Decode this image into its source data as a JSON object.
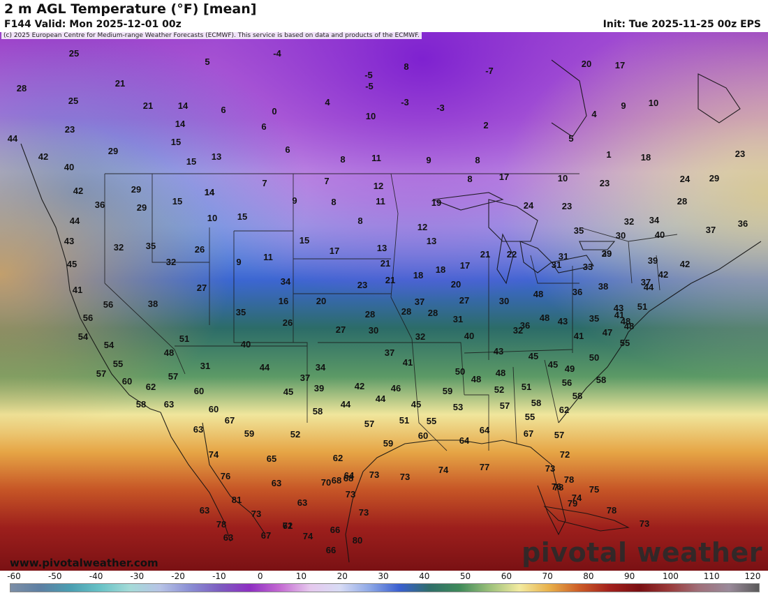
{
  "header": {
    "title": "2 m AGL Temperature (°F) [mean]",
    "valid": "F144 Valid: Mon 2025-12-01 00z",
    "init": "Init: Tue 2025-11-25 00z EPS",
    "copyright": "(c) 2025 European Centre for Medium-range Weather Forecasts (ECMWF). This service is based on data and products of the ECMWF."
  },
  "branding": {
    "logo_text": "pivotal weather",
    "site": "www.pivotalweather.com"
  },
  "colorbar": {
    "ticks": [
      "-60",
      "-50",
      "-40",
      "-30",
      "-20",
      "-10",
      "0",
      "10",
      "20",
      "30",
      "40",
      "50",
      "60",
      "70",
      "80",
      "90",
      "100",
      "110",
      "120"
    ],
    "colors": [
      "#7c8ea6",
      "#5d7fa3",
      "#4a9eb1",
      "#68c2c6",
      "#a5dbd8",
      "#b7c3e6",
      "#8a8ed4",
      "#7c5cc0",
      "#8e2fc2",
      "#c46ad2",
      "#e6c8ee",
      "#d8dcf5",
      "#8ea8e6",
      "#3a5fd0",
      "#2f6e6a",
      "#3f8a5a",
      "#9bc07a",
      "#f3eba0",
      "#e8b04a",
      "#cc5c27",
      "#a3211d",
      "#7a0f12",
      "#9a3a3a",
      "#a0707a",
      "#9a8a9a",
      "#5a5a5a"
    ]
  },
  "map_values": [
    {
      "v": "25",
      "c": "fg"
    },
    {
      "v": "28",
      "c": "fg"
    },
    {
      "v": "25",
      "c": "fg"
    },
    {
      "v": "23",
      "c": "fg"
    },
    {
      "v": "44",
      "c": "fg"
    },
    {
      "v": "42",
      "c": "fg"
    },
    {
      "v": "40",
      "c": "fg"
    },
    {
      "v": "21",
      "c": "fg"
    },
    {
      "v": "21",
      "c": "fg"
    },
    {
      "v": "14",
      "c": "fg"
    },
    {
      "v": "14",
      "c": "fg"
    },
    {
      "v": "15",
      "c": "fg"
    },
    {
      "v": "15",
      "c": "fg"
    },
    {
      "v": "29",
      "c": "fg"
    },
    {
      "v": "5",
      "c": "fg"
    },
    {
      "v": "6",
      "c": "fg"
    },
    {
      "v": "0",
      "c": "fg"
    },
    {
      "v": "6",
      "c": "fg"
    },
    {
      "v": "6",
      "c": "fg"
    },
    {
      "v": "13",
      "c": "fg"
    },
    {
      "v": "-4",
      "c": "fg"
    },
    {
      "v": "-5",
      "c": "fg"
    },
    {
      "v": "-5",
      "c": "fg"
    },
    {
      "v": "8",
      "c": "fg"
    },
    {
      "v": "-7",
      "c": "fg"
    },
    {
      "v": "4",
      "c": "fg"
    },
    {
      "v": "-3",
      "c": "fg"
    },
    {
      "v": "-3",
      "c": "fg"
    },
    {
      "v": "10",
      "c": "fg"
    },
    {
      "v": "2",
      "c": "fg"
    },
    {
      "v": "8",
      "c": "fg"
    },
    {
      "v": "11",
      "c": "fg"
    },
    {
      "v": "9",
      "c": "fg"
    },
    {
      "v": "8",
      "c": "fg"
    },
    {
      "v": "20",
      "c": "fg"
    },
    {
      "v": "17",
      "c": "fg"
    },
    {
      "v": "9",
      "c": "fg"
    },
    {
      "v": "10",
      "c": "fg"
    },
    {
      "v": "4",
      "c": "fg"
    },
    {
      "v": "5",
      "c": "fg"
    },
    {
      "v": "1",
      "c": "fg"
    },
    {
      "v": "18",
      "c": "fg"
    },
    {
      "v": "23",
      "c": "fg"
    },
    {
      "v": "42",
      "c": "fg"
    },
    {
      "v": "36",
      "c": "fg"
    },
    {
      "v": "29",
      "c": "fg"
    },
    {
      "v": "29",
      "c": "fg"
    },
    {
      "v": "15",
      "c": "fg"
    },
    {
      "v": "14",
      "c": "fg"
    },
    {
      "v": "10",
      "c": "fg"
    },
    {
      "v": "15",
      "c": "fg"
    },
    {
      "v": "7",
      "c": "fg"
    },
    {
      "v": "9",
      "c": "fg"
    },
    {
      "v": "7",
      "c": "fg"
    },
    {
      "v": "8",
      "c": "fg"
    },
    {
      "v": "12",
      "c": "fg"
    },
    {
      "v": "11",
      "c": "fg"
    },
    {
      "v": "8",
      "c": "fg"
    },
    {
      "v": "8",
      "c": "fg"
    },
    {
      "v": "17",
      "c": "fg"
    },
    {
      "v": "10",
      "c": "fg"
    },
    {
      "v": "23",
      "c": "fg"
    },
    {
      "v": "24",
      "c": "fg"
    },
    {
      "v": "29",
      "c": "fg"
    },
    {
      "v": "28",
      "c": "fg"
    },
    {
      "v": "44",
      "c": "fg"
    },
    {
      "v": "43",
      "c": "fg"
    },
    {
      "v": "45",
      "c": "fg"
    },
    {
      "v": "32",
      "c": "fg"
    },
    {
      "v": "35",
      "c": "fg"
    },
    {
      "v": "32",
      "c": "fg"
    },
    {
      "v": "26",
      "c": "fg"
    },
    {
      "v": "14",
      "c": "fg"
    },
    {
      "v": "15",
      "c": "fg"
    },
    {
      "v": "9",
      "c": "fg"
    },
    {
      "v": "11",
      "c": "fg"
    },
    {
      "v": "17",
      "c": "fg"
    },
    {
      "v": "13",
      "c": "fg"
    },
    {
      "v": "19",
      "c": "fg"
    },
    {
      "v": "12",
      "c": "fg"
    },
    {
      "v": "13",
      "c": "fg"
    },
    {
      "v": "24",
      "c": "fg"
    },
    {
      "v": "23",
      "c": "fg"
    },
    {
      "v": "32",
      "c": "fg"
    },
    {
      "v": "34",
      "c": "fg"
    },
    {
      "v": "35",
      "c": "fg"
    },
    {
      "v": "36",
      "c": "fg"
    },
    {
      "v": "40",
      "c": "fg"
    },
    {
      "v": "37",
      "c": "fg"
    },
    {
      "v": "41",
      "c": "fg"
    },
    {
      "v": "56",
      "c": "fg"
    },
    {
      "v": "38",
      "c": "fg"
    },
    {
      "v": "27",
      "c": "fg"
    },
    {
      "v": "34",
      "c": "fg"
    },
    {
      "v": "16",
      "c": "fg"
    },
    {
      "v": "20",
      "c": "fg"
    },
    {
      "v": "23",
      "c": "fg"
    },
    {
      "v": "21",
      "c": "fg"
    },
    {
      "v": "21",
      "c": "fg"
    },
    {
      "v": "18",
      "c": "fg"
    },
    {
      "v": "18",
      "c": "fg"
    },
    {
      "v": "17",
      "c": "fg"
    },
    {
      "v": "20",
      "c": "fg"
    },
    {
      "v": "21",
      "c": "fg"
    },
    {
      "v": "22",
      "c": "fg"
    },
    {
      "v": "29",
      "c": "fg"
    },
    {
      "v": "30",
      "c": "fg"
    },
    {
      "v": "31",
      "c": "fg"
    },
    {
      "v": "31",
      "c": "fg"
    },
    {
      "v": "33",
      "c": "fg"
    },
    {
      "v": "39",
      "c": "fg"
    },
    {
      "v": "39",
      "c": "fg"
    },
    {
      "v": "42",
      "c": "fg"
    },
    {
      "v": "56",
      "c": "fg"
    },
    {
      "v": "54",
      "c": "fg"
    },
    {
      "v": "54",
      "c": "fg"
    },
    {
      "v": "55",
      "c": "fg"
    },
    {
      "v": "57",
      "c": "fg"
    },
    {
      "v": "35",
      "c": "fg"
    },
    {
      "v": "26",
      "c": "fg"
    },
    {
      "v": "27",
      "c": "fg"
    },
    {
      "v": "28",
      "c": "fg"
    },
    {
      "v": "28",
      "c": "fg"
    },
    {
      "v": "28",
      "c": "fg"
    },
    {
      "v": "27",
      "c": "fg"
    },
    {
      "v": "31",
      "c": "fg"
    },
    {
      "v": "32",
      "c": "fg"
    },
    {
      "v": "30",
      "c": "fg"
    },
    {
      "v": "37",
      "c": "fg"
    },
    {
      "v": "36",
      "c": "fg"
    },
    {
      "v": "38",
      "c": "fg"
    },
    {
      "v": "35",
      "c": "fg"
    },
    {
      "v": "37",
      "c": "fg"
    },
    {
      "v": "42",
      "c": "fg"
    },
    {
      "v": "44",
      "c": "fg"
    },
    {
      "v": "51",
      "c": "fg"
    },
    {
      "v": "48",
      "c": "fg"
    },
    {
      "v": "43",
      "c": "fg"
    },
    {
      "v": "41",
      "c": "fg"
    },
    {
      "v": "48",
      "c": "fg"
    },
    {
      "v": "48",
      "c": "fg"
    },
    {
      "v": "48",
      "c": "fg"
    },
    {
      "v": "30",
      "c": "fg"
    },
    {
      "v": "32",
      "c": "fg"
    },
    {
      "v": "36",
      "c": "fg"
    },
    {
      "v": "40",
      "c": "fg"
    },
    {
      "v": "43",
      "c": "fg"
    },
    {
      "v": "41",
      "c": "fg"
    },
    {
      "v": "47",
      "c": "fg"
    },
    {
      "v": "55",
      "c": "fg"
    },
    {
      "v": "48",
      "c": "fg"
    },
    {
      "v": "51",
      "c": "fg"
    },
    {
      "v": "31",
      "c": "fg"
    },
    {
      "v": "40",
      "c": "fg"
    },
    {
      "v": "44",
      "c": "fg"
    },
    {
      "v": "34",
      "c": "fg"
    },
    {
      "v": "37",
      "c": "fg"
    },
    {
      "v": "37",
      "c": "fg"
    },
    {
      "v": "41",
      "c": "fg"
    },
    {
      "v": "43",
      "c": "fg"
    },
    {
      "v": "45",
      "c": "fg"
    },
    {
      "v": "45",
      "c": "fg"
    },
    {
      "v": "50",
      "c": "fg"
    },
    {
      "v": "49",
      "c": "fg"
    },
    {
      "v": "60",
      "c": "fg"
    },
    {
      "v": "62",
      "c": "fg"
    },
    {
      "v": "57",
      "c": "fg"
    },
    {
      "v": "60",
      "c": "fg"
    },
    {
      "v": "58",
      "c": "fg"
    },
    {
      "v": "63",
      "c": "fg"
    },
    {
      "v": "60",
      "c": "fg"
    },
    {
      "v": "45",
      "c": "fg"
    },
    {
      "v": "39",
      "c": "fg"
    },
    {
      "v": "42",
      "c": "fg"
    },
    {
      "v": "46",
      "c": "fg"
    },
    {
      "v": "44",
      "c": "fg"
    },
    {
      "v": "44",
      "c": "fg"
    },
    {
      "v": "48",
      "c": "fg"
    },
    {
      "v": "48",
      "c": "fg"
    },
    {
      "v": "52",
      "c": "fg"
    },
    {
      "v": "51",
      "c": "fg"
    },
    {
      "v": "56",
      "c": "fg"
    },
    {
      "v": "57",
      "c": "fg"
    },
    {
      "v": "58",
      "c": "fg"
    },
    {
      "v": "58",
      "c": "fg"
    },
    {
      "v": "59",
      "c": "fg"
    },
    {
      "v": "50",
      "c": "fg"
    },
    {
      "v": "58",
      "c": "fg"
    },
    {
      "v": "58",
      "c": "fg"
    },
    {
      "v": "45",
      "c": "fg"
    },
    {
      "v": "53",
      "c": "fg"
    },
    {
      "v": "55",
      "c": "fg"
    },
    {
      "v": "57",
      "c": "fg"
    },
    {
      "v": "51",
      "c": "fg"
    },
    {
      "v": "55",
      "c": "fg"
    },
    {
      "v": "62",
      "c": "fg"
    },
    {
      "v": "63",
      "c": "fg"
    },
    {
      "v": "67",
      "c": "fg"
    },
    {
      "v": "59",
      "c": "fg"
    },
    {
      "v": "52",
      "c": "fg"
    },
    {
      "v": "74",
      "c": "fg"
    },
    {
      "v": "76",
      "c": "fg"
    },
    {
      "v": "65",
      "c": "fg"
    },
    {
      "v": "63",
      "c": "fg"
    },
    {
      "v": "59",
      "c": "fg"
    },
    {
      "v": "60",
      "c": "fg"
    },
    {
      "v": "64",
      "c": "fg"
    },
    {
      "v": "63",
      "c": "fg"
    },
    {
      "v": "64",
      "c": "fg"
    },
    {
      "v": "67",
      "c": "fg"
    },
    {
      "v": "57",
      "c": "fg"
    },
    {
      "v": "62",
      "c": "fg"
    },
    {
      "v": "68",
      "c": "fg"
    },
    {
      "v": "64",
      "c": "fg"
    },
    {
      "v": "70",
      "c": "fg"
    },
    {
      "v": "73",
      "c": "fg"
    },
    {
      "v": "73",
      "c": "fg"
    },
    {
      "v": "73",
      "c": "fg"
    },
    {
      "v": "74",
      "c": "fg"
    },
    {
      "v": "77",
      "c": "fg"
    },
    {
      "v": "81",
      "c": "fg"
    },
    {
      "v": "73",
      "c": "fg"
    },
    {
      "v": "63",
      "c": "fg"
    },
    {
      "v": "71",
      "c": "fg"
    },
    {
      "v": "73",
      "c": "fg"
    },
    {
      "v": "68",
      "c": "fg"
    },
    {
      "v": "72",
      "c": "fg"
    },
    {
      "v": "73",
      "c": "fg"
    },
    {
      "v": "78",
      "c": "fg"
    },
    {
      "v": "76",
      "c": "fg"
    },
    {
      "v": "74",
      "c": "fg"
    },
    {
      "v": "75",
      "c": "fg"
    },
    {
      "v": "78",
      "c": "fg"
    },
    {
      "v": "73",
      "c": "fg"
    },
    {
      "v": "78",
      "c": "fg"
    },
    {
      "v": "79",
      "c": "fg"
    },
    {
      "v": "78",
      "c": "fg"
    },
    {
      "v": "63",
      "c": "fg"
    },
    {
      "v": "67",
      "c": "fg"
    },
    {
      "v": "62",
      "c": "fg"
    },
    {
      "v": "74",
      "c": "fg"
    },
    {
      "v": "66",
      "c": "fg"
    },
    {
      "v": "80",
      "c": "fg"
    },
    {
      "v": "66",
      "c": "fg"
    }
  ]
}
